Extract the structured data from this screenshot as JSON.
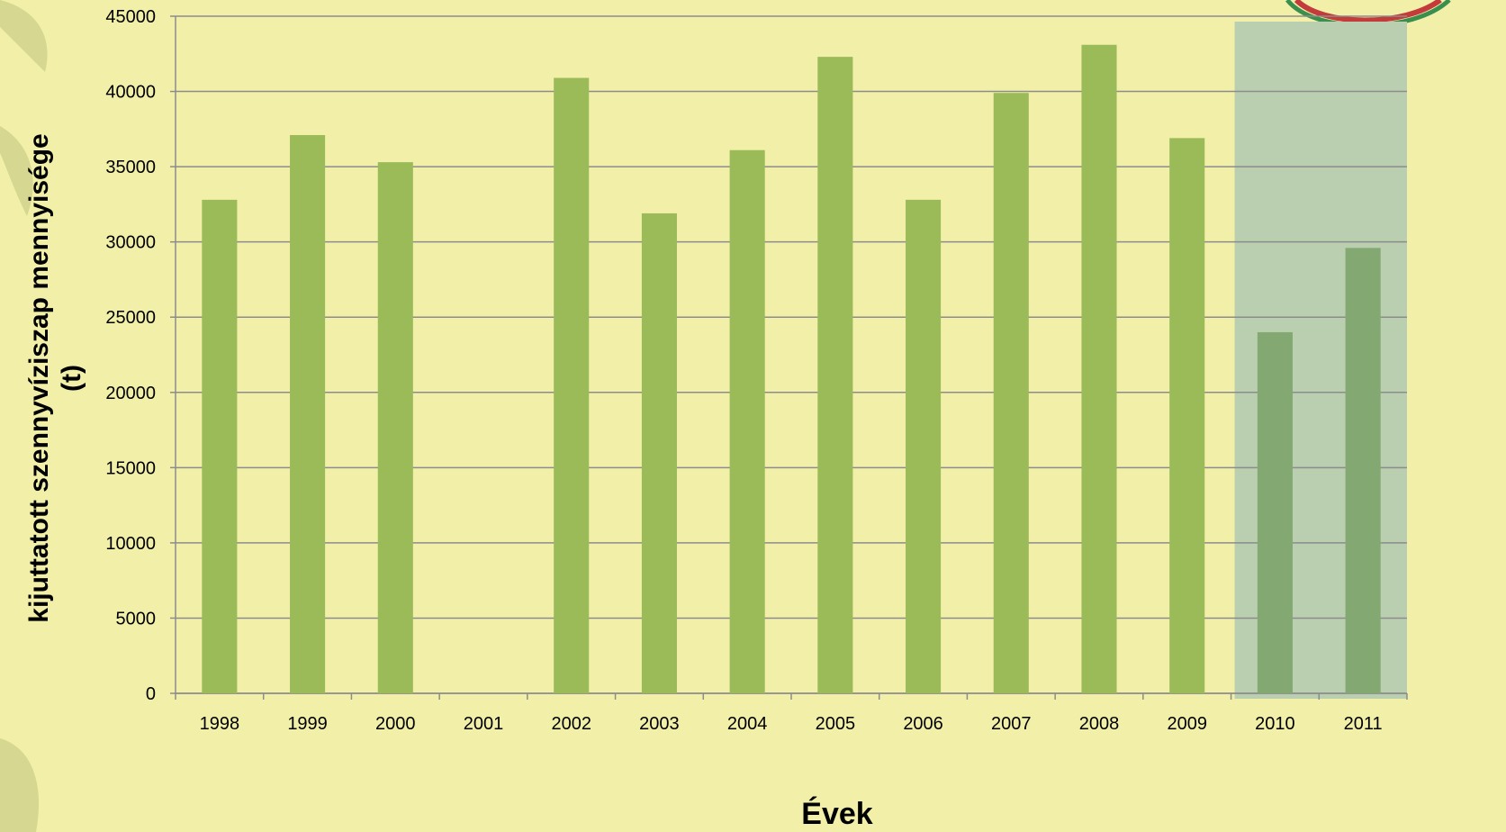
{
  "chart_data": {
    "type": "bar",
    "categories": [
      "1998",
      "1999",
      "2000",
      "2001",
      "2002",
      "2003",
      "2004",
      "2005",
      "2006",
      "2007",
      "2008",
      "2009",
      "2010",
      "2011"
    ],
    "values": [
      32800,
      37100,
      35300,
      null,
      40900,
      31900,
      36100,
      42300,
      32800,
      39900,
      43100,
      36900,
      24000,
      29600
    ],
    "highlighted_categories": [
      "2010",
      "2011"
    ],
    "xlabel": "Évek",
    "ylabel_line1": "kijuttatott  szennyvíziszap mennyisége",
    "ylabel_line2": "(t)",
    "ylim": [
      0,
      45000
    ],
    "yticks": [
      0,
      5000,
      10000,
      15000,
      20000,
      25000,
      30000,
      35000,
      40000,
      45000
    ],
    "grid": true,
    "colors": {
      "bar": "#9bbb59",
      "bar_highlighted": "#84a872",
      "highlight_band": "#b9cfb0",
      "grid": "#8c8c8c",
      "background": "#f2f0a8"
    }
  }
}
